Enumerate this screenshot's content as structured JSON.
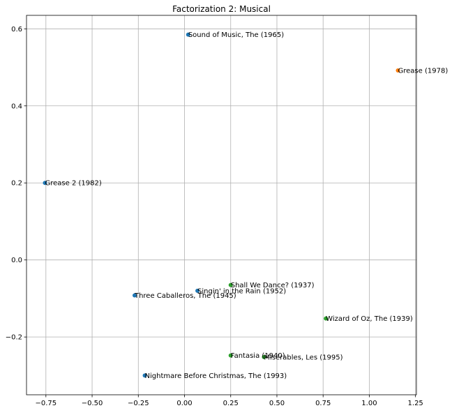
{
  "chart_data": {
    "type": "scatter",
    "title": "Factorization 2: Musical",
    "xlabel": "",
    "ylabel": "",
    "xlim": [
      -0.855,
      1.255
    ],
    "ylim": [
      -0.35,
      0.635
    ],
    "grid": true,
    "x_ticks": [
      {
        "value": -0.75,
        "label": "−0.75"
      },
      {
        "value": -0.5,
        "label": "−0.50"
      },
      {
        "value": -0.25,
        "label": "−0.25"
      },
      {
        "value": 0.0,
        "label": "0.00"
      },
      {
        "value": 0.25,
        "label": "0.25"
      },
      {
        "value": 0.5,
        "label": "0.50"
      },
      {
        "value": 0.75,
        "label": "0.75"
      },
      {
        "value": 1.0,
        "label": "1.00"
      },
      {
        "value": 1.25,
        "label": "1.25"
      }
    ],
    "y_ticks": [
      {
        "value": -0.2,
        "label": "−0.2"
      },
      {
        "value": 0.0,
        "label": "0.0"
      },
      {
        "value": 0.2,
        "label": "0.2"
      },
      {
        "value": 0.4,
        "label": "0.4"
      },
      {
        "value": 0.6,
        "label": "0.6"
      }
    ],
    "colors": {
      "blue": "#1f77b4",
      "orange": "#ff7f0e",
      "green": "#2ca02c"
    },
    "points": [
      {
        "label": "Sound of Music, The (1965)",
        "x": 0.02,
        "y": 0.585,
        "color": "#1f77b4"
      },
      {
        "label": "Grease (1978)",
        "x": 1.155,
        "y": 0.492,
        "color": "#ff7f0e"
      },
      {
        "label": "Grease 2 (1982)",
        "x": -0.755,
        "y": 0.2,
        "color": "#1f77b4"
      },
      {
        "label": "Shall We Dance? (1937)",
        "x": 0.25,
        "y": -0.065,
        "color": "#2ca02c"
      },
      {
        "label": "Singin' in the Rain (1952)",
        "x": 0.07,
        "y": -0.08,
        "color": "#1f77b4"
      },
      {
        "label": "Three Caballeros, The (1945)",
        "x": -0.27,
        "y": -0.092,
        "color": "#1f77b4"
      },
      {
        "label": "Wizard of Oz, The (1939)",
        "x": 0.765,
        "y": -0.152,
        "color": "#2ca02c"
      },
      {
        "label": "Fantasia (1940)",
        "x": 0.25,
        "y": -0.248,
        "color": "#2ca02c"
      },
      {
        "label": "Misérables, Les (1995)",
        "x": 0.43,
        "y": -0.252,
        "color": "#2ca02c"
      },
      {
        "label": "Nightmare Before Christmas, The (1993)",
        "x": -0.215,
        "y": -0.3,
        "color": "#1f77b4"
      }
    ]
  }
}
